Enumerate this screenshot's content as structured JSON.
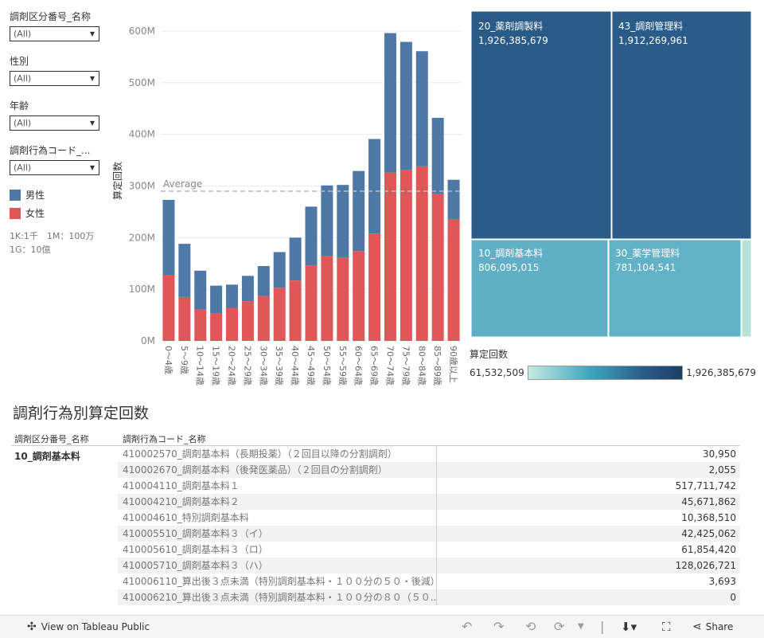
{
  "filters": [
    {
      "label": "調剤区分番号_名称",
      "value": "(All)"
    },
    {
      "label": "性別",
      "value": "(All)"
    },
    {
      "label": "年齢",
      "value": "(All)"
    },
    {
      "label": "調剤行為コード_...",
      "value": "(All)"
    }
  ],
  "legend": {
    "male_label": "男性",
    "female_label": "女性",
    "male_color": "#4e79a7",
    "female_color": "#e15759"
  },
  "note_line1": "1K:1千　1M：100万",
  "note_line2": "1G：10億",
  "chart_data": {
    "type": "bar",
    "stacked": true,
    "ylabel": "算定回数",
    "ylim": [
      0,
      620000000
    ],
    "yticks": [
      "0M",
      "100M",
      "200M",
      "300M",
      "400M",
      "500M",
      "600M"
    ],
    "ytick_values": [
      0,
      100000000,
      200000000,
      300000000,
      400000000,
      500000000,
      600000000
    ],
    "average_label": "Average",
    "average_value": 290000000,
    "categories": [
      "0～4歳",
      "5～9歳",
      "10～14歳",
      "15～19歳",
      "20～24歳",
      "25～29歳",
      "30～34歳",
      "35～39歳",
      "40～44歳",
      "45～49歳",
      "50～54歳",
      "55～59歳",
      "60～64歳",
      "65～69歳",
      "70～74歳",
      "75～79歳",
      "80～84歳",
      "85～89歳",
      "90歳以上"
    ],
    "series": [
      {
        "name": "女性",
        "color": "#e15759",
        "values": [
          128000000,
          85000000,
          61000000,
          54000000,
          64000000,
          77000000,
          87000000,
          103000000,
          117000000,
          146000000,
          165000000,
          162000000,
          174000000,
          208000000,
          326000000,
          331000000,
          338000000,
          284000000,
          236000000
        ]
      },
      {
        "name": "男性",
        "color": "#4e79a7",
        "values": [
          145000000,
          103000000,
          75000000,
          53000000,
          45000000,
          49000000,
          58000000,
          69000000,
          83000000,
          114000000,
          136000000,
          140000000,
          155000000,
          183000000,
          270000000,
          248000000,
          223000000,
          148000000,
          76000000
        ]
      }
    ]
  },
  "treemap": {
    "cells": [
      {
        "name": "20_薬剤調製料",
        "value": "1,926,385,679",
        "color": "#2a5a87"
      },
      {
        "name": "43_調剤管理料",
        "value": "1,912,269,961",
        "color": "#2b5b88"
      },
      {
        "name": "10_調剤基本料",
        "value": "806,095,015",
        "color": "#5fb0c6"
      },
      {
        "name": "30_薬学管理料",
        "value": "781,104,541",
        "color": "#62b2c7"
      },
      {
        "name": "",
        "value": "",
        "color": "#b6e3d6"
      }
    ]
  },
  "color_legend": {
    "title": "算定回数",
    "min": "61,532,509",
    "max": "1,926,385,679"
  },
  "table": {
    "title": "調剤行為別算定回数",
    "col1": "調剤区分番号_名称",
    "col2": "調剤行為コード_名称",
    "group": "10_調剤基本料",
    "rows": [
      {
        "code": "410002570_調剤基本料（長期投薬）（２回目以降の分割調剤）",
        "value": "30,950"
      },
      {
        "code": "410002670_調剤基本料（後発医薬品）（２回目の分割調剤）",
        "value": "2,055"
      },
      {
        "code": "410004110_調剤基本料１",
        "value": "517,711,742"
      },
      {
        "code": "410004210_調剤基本料２",
        "value": "45,671,862"
      },
      {
        "code": "410004610_特別調剤基本料",
        "value": "10,368,510"
      },
      {
        "code": "410005510_調剤基本料３（イ）",
        "value": "42,425,062"
      },
      {
        "code": "410005610_調剤基本料３（ロ）",
        "value": "61,854,420"
      },
      {
        "code": "410005710_調剤基本料３（ハ）",
        "value": "128,026,721"
      },
      {
        "code": "410006110_算出後３点未満（特別調剤基本料・１００分の５０・後減）",
        "value": "3,693"
      },
      {
        "code": "410006210_算出後３点未満（特別調剤基本料・１００分の８０（５０..",
        "value": "0"
      }
    ]
  },
  "footer": {
    "view_label": "View on Tableau Public",
    "share_label": "Share"
  }
}
